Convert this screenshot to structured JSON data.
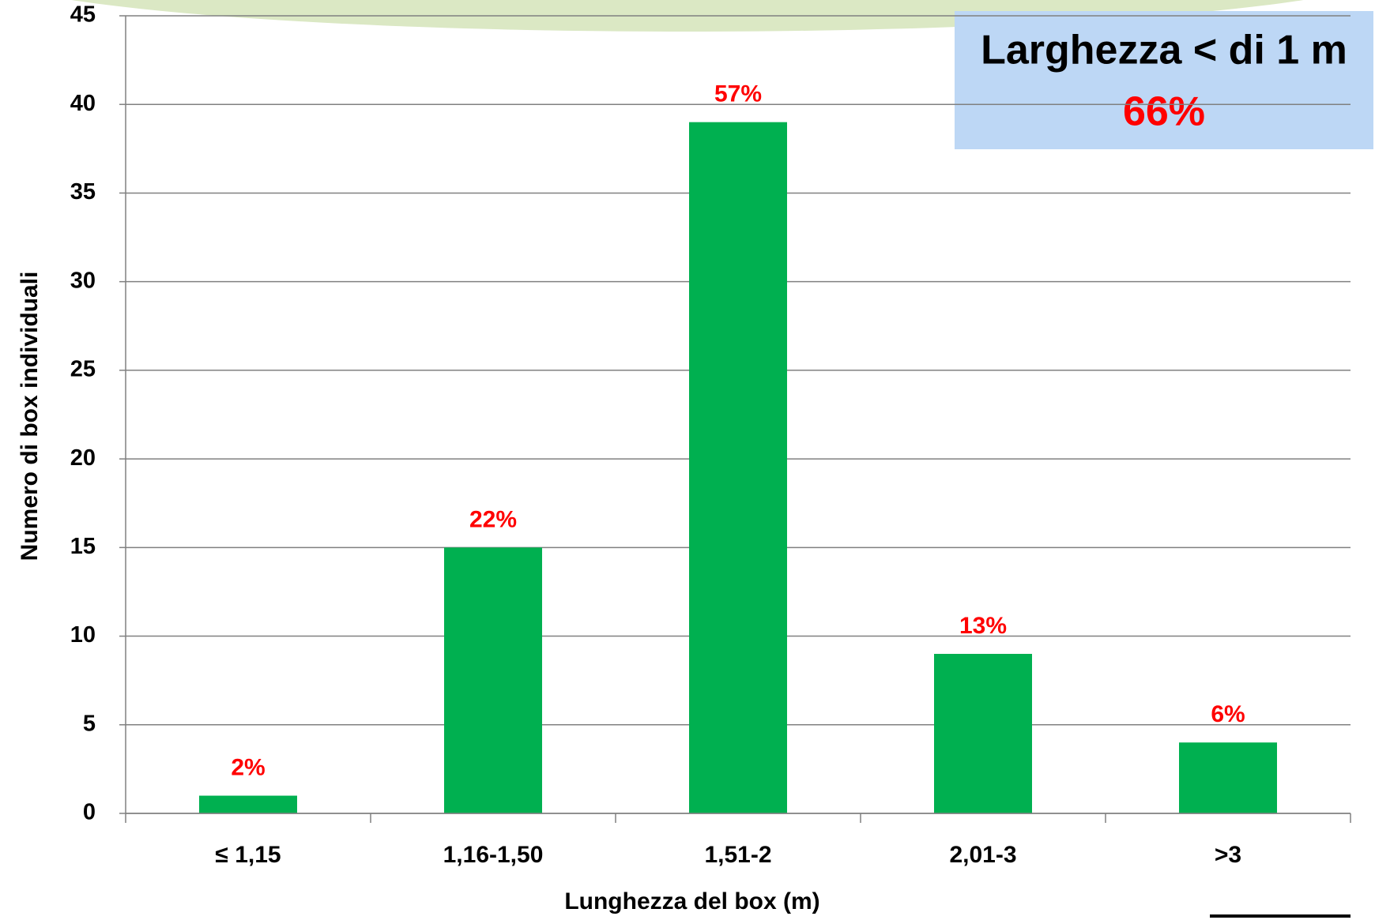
{
  "chart_data": {
    "type": "bar",
    "categories": [
      "≤ 1,15",
      "1,16-1,50",
      "1,51-2",
      "2,01-3",
      ">3"
    ],
    "values": [
      1,
      15,
      39,
      9,
      4
    ],
    "percent_labels": [
      "2%",
      "22%",
      "57%",
      "13%",
      "6%"
    ],
    "color": "#00b050",
    "xlabel": "Lunghezza del box (m)",
    "ylabel": "Numero di box individuali",
    "ylim": [
      0,
      45
    ],
    "yticks": [
      0,
      5,
      10,
      15,
      20,
      25,
      30,
      35,
      40,
      45
    ],
    "grid": true,
    "annotation": {
      "title": "Larghezza < di 1 m",
      "value": "66%"
    }
  }
}
